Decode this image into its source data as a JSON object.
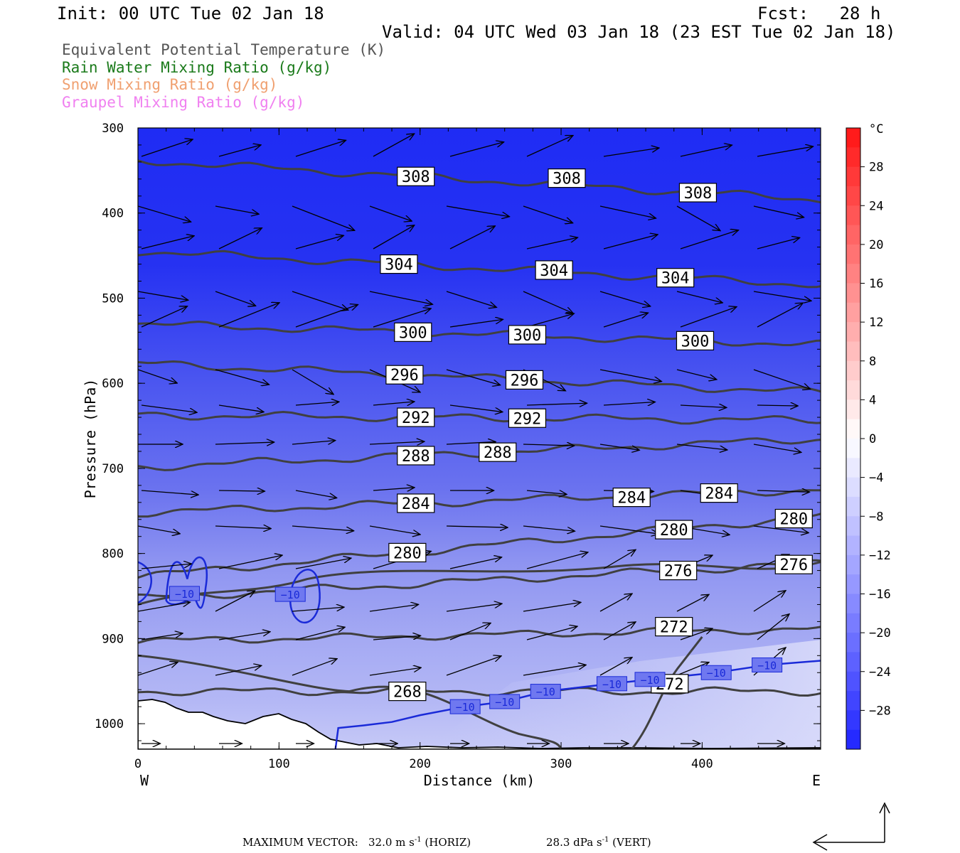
{
  "header": {
    "init": "Init: 00 UTC Tue 02 Jan 18",
    "fcst": "Fcst:   28 h",
    "valid": "Valid: 04 UTC Wed 03 Jan 18 (23 EST Tue 02 Jan 18)"
  },
  "fields": [
    {
      "label": "Equivalent Potential Temperature (K)",
      "color": "#555555"
    },
    {
      "label": "Rain Water Mixing Ratio (g/kg)",
      "color": "#1a7a1a"
    },
    {
      "label": "Snow Mixing Ratio (g/kg)",
      "color": "#f0a070"
    },
    {
      "label": "Graupel Mixing Ratio (g/kg)",
      "color": "#f080f0"
    }
  ],
  "footer": {
    "max_label": "MAXIMUM VECTOR:",
    "horiz_value": "32.0 m s",
    "horiz_unit": "(HORIZ)",
    "vert_value": "28.3 dPa s",
    "vert_unit": "(VERT)",
    "exp": "-1"
  },
  "chart_data": {
    "type": "cross-section",
    "xlabel": "Distance (km)",
    "ylabel": "Pressure (hPa)",
    "x_ticks": [
      0,
      100,
      200,
      300,
      400
    ],
    "xlim": [
      0,
      484
    ],
    "y_ticks": [
      300,
      400,
      500,
      600,
      700,
      800,
      900,
      1000
    ],
    "ylim": [
      300,
      1030
    ],
    "left_end": "W",
    "right_end": "E",
    "colorbar": {
      "unit": "°C",
      "range": [
        -32,
        32
      ],
      "tick_labels": [
        "28",
        "24",
        "20",
        "16",
        "12",
        "8",
        "4",
        "0",
        "−4",
        "−8",
        "−12",
        "−16",
        "−20",
        "−24",
        "−28"
      ],
      "tick_values": [
        28,
        24,
        20,
        16,
        12,
        8,
        4,
        0,
        -4,
        -8,
        -12,
        -16,
        -20,
        -24,
        -28
      ]
    },
    "theta_e_contours": [
      {
        "value": 308,
        "labels": [
          {
            "text": "308",
            "x": 197,
            "p": 357
          },
          {
            "text": "308",
            "x": 304,
            "p": 359
          },
          {
            "text": "308",
            "x": 397,
            "p": 376
          }
        ]
      },
      {
        "value": 304,
        "labels": [
          {
            "text": "304",
            "x": 185,
            "p": 460
          },
          {
            "text": "304",
            "x": 295,
            "p": 467
          },
          {
            "text": "304",
            "x": 381,
            "p": 476
          }
        ]
      },
      {
        "value": 300,
        "labels": [
          {
            "text": "300",
            "x": 195,
            "p": 540
          },
          {
            "text": "300",
            "x": 276,
            "p": 543
          },
          {
            "text": "300",
            "x": 395,
            "p": 550
          }
        ]
      },
      {
        "value": 296,
        "labels": [
          {
            "text": "296",
            "x": 189,
            "p": 590
          },
          {
            "text": "296",
            "x": 274,
            "p": 596
          }
        ]
      },
      {
        "value": 292,
        "labels": [
          {
            "text": "292",
            "x": 197,
            "p": 640
          },
          {
            "text": "292",
            "x": 276,
            "p": 641
          }
        ]
      },
      {
        "value": 288,
        "labels": [
          {
            "text": "288",
            "x": 197,
            "p": 685
          },
          {
            "text": "288",
            "x": 255,
            "p": 681
          }
        ]
      },
      {
        "value": 284,
        "labels": [
          {
            "text": "284",
            "x": 197,
            "p": 741
          },
          {
            "text": "284",
            "x": 350,
            "p": 734
          },
          {
            "text": "284",
            "x": 412,
            "p": 729
          }
        ]
      },
      {
        "value": 280,
        "labels": [
          {
            "text": "280",
            "x": 191,
            "p": 799
          },
          {
            "text": "280",
            "x": 380,
            "p": 772
          },
          {
            "text": "280",
            "x": 465,
            "p": 759
          }
        ]
      },
      {
        "value": 276,
        "labels": [
          {
            "text": "276",
            "x": 383,
            "p": 820
          },
          {
            "text": "276",
            "x": 465,
            "p": 813
          }
        ]
      },
      {
        "value": 272,
        "labels": [
          {
            "text": "272",
            "x": 380,
            "p": 886
          },
          {
            "text": "272",
            "x": 377,
            "p": 953
          }
        ]
      },
      {
        "value": 268,
        "labels": [
          {
            "text": "268",
            "x": 191,
            "p": 962
          }
        ]
      }
    ],
    "isotherm_minus10_labels": [
      {
        "text": "−10",
        "x": 33,
        "p": 847
      },
      {
        "text": "−10",
        "x": 108,
        "p": 848
      },
      {
        "text": "−10",
        "x": 232,
        "p": 980
      },
      {
        "text": "−10",
        "x": 260,
        "p": 974
      },
      {
        "text": "−10",
        "x": 289,
        "p": 962
      },
      {
        "text": "−10",
        "x": 336,
        "p": 953
      },
      {
        "text": "−10",
        "x": 363,
        "p": 948
      },
      {
        "text": "−10",
        "x": 410,
        "p": 940
      },
      {
        "text": "−10",
        "x": 446,
        "p": 931
      }
    ]
  }
}
